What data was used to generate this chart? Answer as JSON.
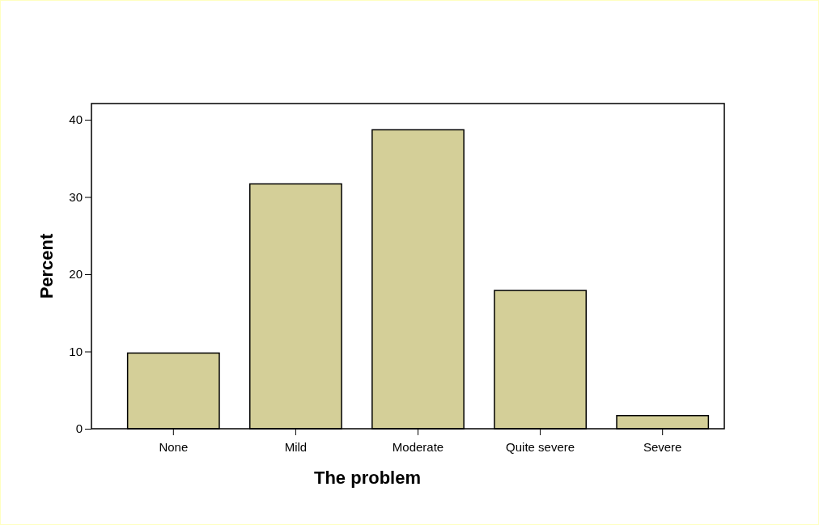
{
  "chart_data": {
    "type": "bar",
    "xlabel": "The problem",
    "ylabel": "Percent",
    "categories": [
      "None",
      "Mild",
      "Moderate",
      "Quite severe",
      "Severe"
    ],
    "values": [
      9.8,
      31.7,
      38.7,
      17.9,
      1.7
    ],
    "color": "#d4cf98",
    "ylim": [
      0,
      42.1
    ],
    "yticks": [
      0,
      10,
      20,
      30,
      40
    ]
  }
}
